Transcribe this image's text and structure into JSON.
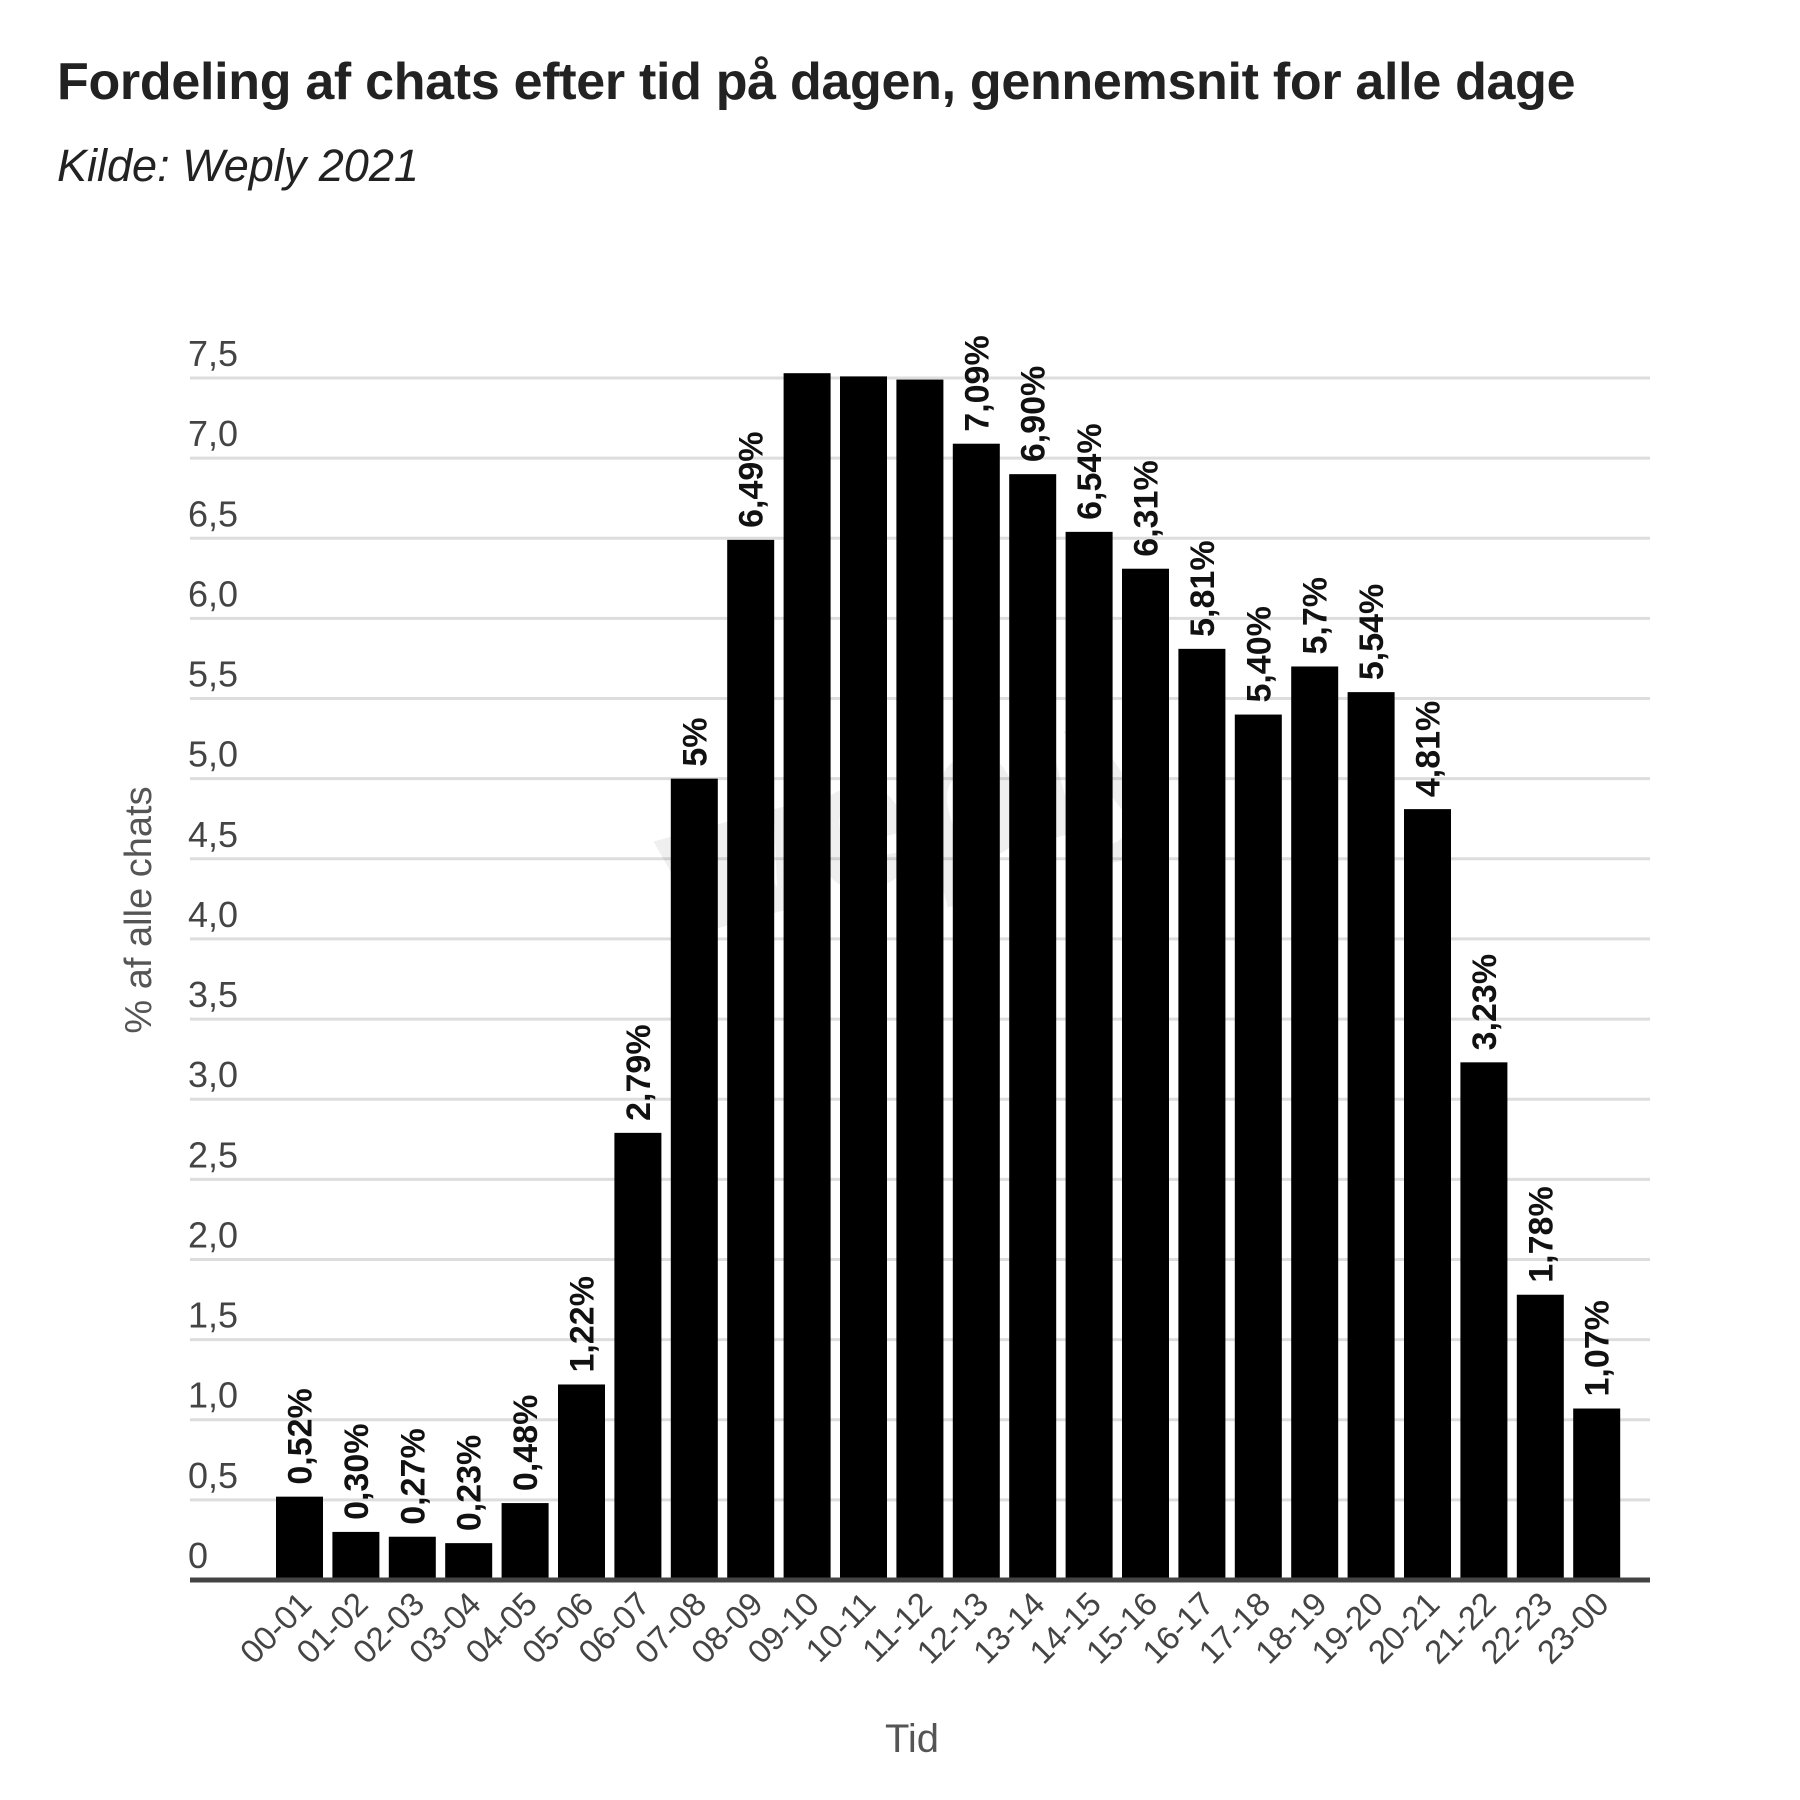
{
  "header": {
    "title": "Fordeling af chats efter tid på dagen, gennemsnit for alle dage",
    "subtitle": "Kilde: Weply 2021"
  },
  "watermark": {
    "text": "weply"
  },
  "chart_data": {
    "type": "bar",
    "title": "Fordeling af chats efter tid på dagen, gennemsnit for alle dage",
    "subtitle": "Kilde: Weply 2021",
    "xlabel": "Tid",
    "ylabel": "% af alle chats",
    "ylim": [
      0,
      7.5
    ],
    "yticks": [
      "0",
      "0,5",
      "1,0",
      "1,5",
      "2,0",
      "2,5",
      "3,0",
      "3,5",
      "4,0",
      "4,5",
      "5,0",
      "5,5",
      "6,0",
      "6,5",
      "7,0",
      "7,5"
    ],
    "grid": true,
    "bar_color": "#000000",
    "categories": [
      "00-01",
      "01-02",
      "02-03",
      "03-04",
      "04-05",
      "05-06",
      "06-07",
      "07-08",
      "08-09",
      "09-10",
      "10-11",
      "11-12",
      "12-13",
      "13-14",
      "14-15",
      "15-16",
      "16-17",
      "17-18",
      "18-19",
      "19-20",
      "20-21",
      "21-22",
      "22-23",
      "23-00"
    ],
    "values": [
      0.52,
      0.3,
      0.27,
      0.23,
      0.48,
      1.22,
      2.79,
      5.0,
      6.49,
      7.53,
      7.51,
      7.49,
      7.09,
      6.9,
      6.54,
      6.31,
      5.81,
      5.4,
      5.7,
      5.54,
      4.81,
      3.23,
      1.78,
      1.07
    ],
    "data_labels": [
      "0,52%",
      "0,30%",
      "0,27%",
      "0,23%",
      "0,48%",
      "1,22%",
      "2,79%",
      "5%",
      "6,49%",
      "",
      "",
      "",
      "7,09%",
      "6,90%",
      "6,54%",
      "6,31%",
      "5,81%",
      "5,40%",
      "5,7%",
      "5,54%",
      "4,81%",
      "3,23%",
      "1,78%",
      "1,07%"
    ]
  }
}
